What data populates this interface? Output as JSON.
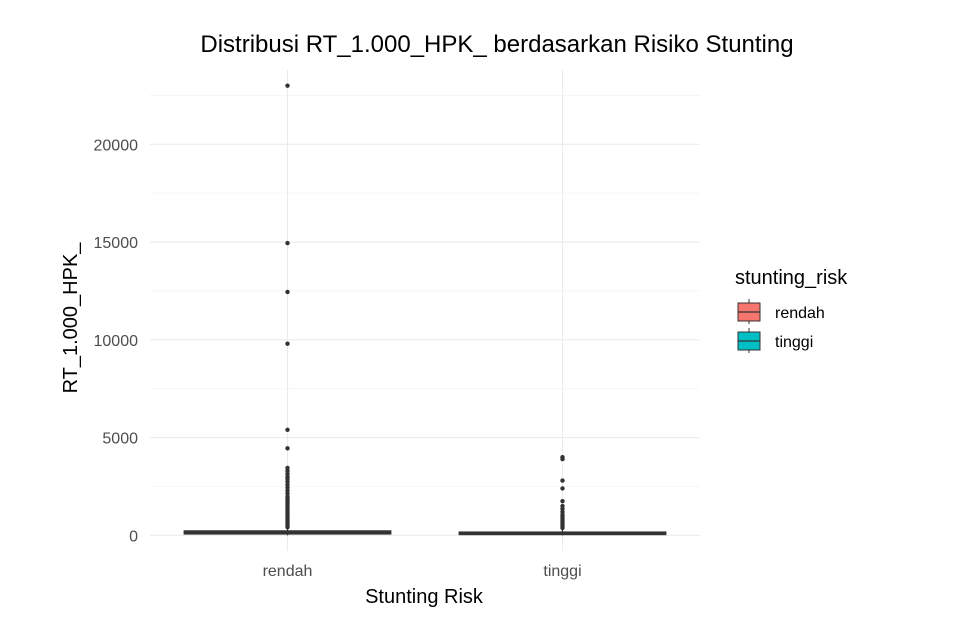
{
  "chart_data": {
    "type": "boxplot",
    "title": "Distribusi RT_1.000_HPK_ berdasarkan Risiko Stunting",
    "xlabel": "Stunting Risk",
    "ylabel": "RT_1.000_HPK_",
    "categories": [
      "rendah",
      "tinggi"
    ],
    "ylim": [
      -800,
      23800
    ],
    "yticks": [
      0,
      5000,
      10000,
      15000,
      20000
    ],
    "ytick_labels": [
      "0",
      "5000",
      "10000",
      "15000",
      "20000"
    ],
    "grid": true,
    "legend": {
      "title": "stunting_risk",
      "position": "right",
      "entries": [
        {
          "label": "rendah",
          "color": "#F8766D"
        },
        {
          "label": "tinggi",
          "color": "#00BFC4"
        }
      ]
    },
    "boxes": [
      {
        "category": "rendah",
        "color": "#F8766D",
        "q1": 80,
        "median": 150,
        "q3": 220,
        "whisker_low": 0,
        "whisker_high": 350,
        "outliers": [
          23000,
          14950,
          12450,
          9800,
          5400,
          4450,
          3450,
          3300,
          3150,
          3000,
          2900,
          2750,
          2600,
          2450,
          2300,
          2150,
          2000,
          1900,
          1800,
          1700,
          1600,
          1500,
          1400,
          1300,
          1200,
          1100,
          1000,
          900,
          800,
          700,
          600,
          500,
          420
        ]
      },
      {
        "category": "tinggi",
        "color": "#00BFC4",
        "q1": 50,
        "median": 100,
        "q3": 160,
        "whisker_low": 0,
        "whisker_high": 300,
        "outliers": [
          4000,
          3900,
          2800,
          2400,
          1750,
          1500,
          1350,
          1200,
          1050,
          950,
          850,
          750,
          650,
          550,
          450,
          380
        ]
      }
    ]
  }
}
